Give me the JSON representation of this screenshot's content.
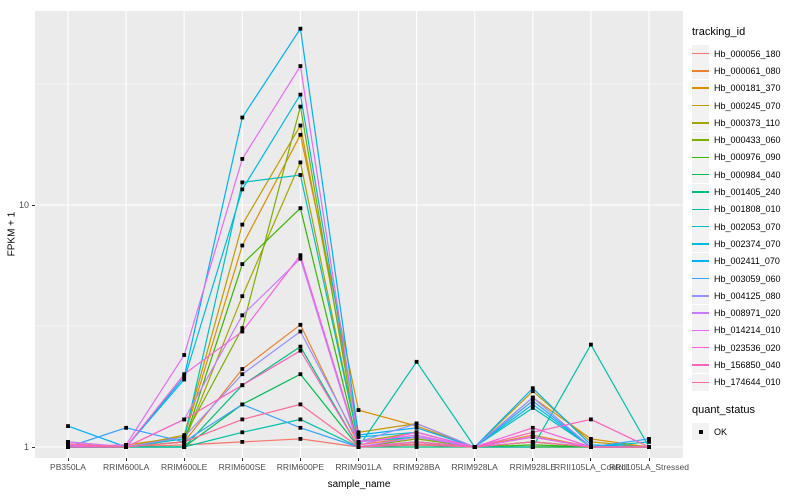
{
  "chart_data": {
    "type": "line",
    "title": "",
    "xlabel": "sample_name",
    "ylabel": "FPKM + 1",
    "y_scale": "log10",
    "ylim": [
      0.9,
      62
    ],
    "grid": true,
    "panel_bg": "#EBEBEB",
    "grid_color": "#FFFFFF",
    "point_shape": "filled-square",
    "point_color": "#000000",
    "y_ticks": [
      {
        "value": 1,
        "label": "1"
      },
      {
        "value": 10,
        "label": "10"
      }
    ],
    "y_minor_ticks": [
      3.162,
      31.62
    ],
    "categories": [
      "PB350LA",
      "RRIM600LA",
      "RRIM600LE",
      "RRIM600SE",
      "RRIM600PE",
      "RRIM901LA",
      "RRIM928BA",
      "RRIM928LA",
      "RRIM928LE",
      "RRII105LA_Control",
      "RRII105LA_Stressed"
    ],
    "series": [
      {
        "name": "Hb_000056_180",
        "color": "#F8766D",
        "values": [
          1.05,
          1.0,
          1.02,
          1.05,
          1.08,
          1.0,
          1.03,
          1.0,
          1.0,
          1.0,
          1.0
        ]
      },
      {
        "name": "Hb_000061_080",
        "color": "#EA8331",
        "values": [
          1.0,
          1.0,
          1.05,
          2.1,
          3.2,
          1.02,
          1.1,
          1.0,
          1.12,
          1.0,
          1.0
        ]
      },
      {
        "name": "Hb_000181_370",
        "color": "#D89000",
        "values": [
          1.0,
          1.02,
          1.1,
          6.8,
          19.5,
          1.42,
          1.22,
          1.0,
          1.6,
          1.08,
          1.0
        ]
      },
      {
        "name": "Hb_000245_070",
        "color": "#C09B00",
        "values": [
          1.0,
          1.0,
          1.12,
          8.3,
          21.3,
          1.15,
          1.25,
          1.0,
          1.7,
          1.05,
          1.0
        ]
      },
      {
        "name": "Hb_000373_110",
        "color": "#A3A500",
        "values": [
          1.0,
          1.0,
          1.05,
          4.2,
          15.0,
          1.05,
          1.15,
          1.0,
          1.1,
          1.0,
          1.0
        ]
      },
      {
        "name": "Hb_000433_060",
        "color": "#7CAE00",
        "values": [
          1.0,
          1.0,
          1.1,
          3.1,
          25.5,
          1.0,
          1.08,
          1.0,
          1.05,
          1.0,
          1.0
        ]
      },
      {
        "name": "Hb_000976_090",
        "color": "#39B600",
        "values": [
          1.0,
          1.0,
          1.05,
          5.7,
          9.7,
          1.0,
          1.05,
          1.0,
          1.02,
          1.0,
          1.0
        ]
      },
      {
        "name": "Hb_000984_040",
        "color": "#00BB4E",
        "values": [
          1.0,
          1.0,
          1.0,
          1.5,
          2.0,
          1.0,
          1.02,
          1.0,
          1.0,
          1.0,
          1.0
        ]
      },
      {
        "name": "Hb_001405_240",
        "color": "#00BF7D",
        "values": [
          1.0,
          1.0,
          1.0,
          1.8,
          2.6,
          1.0,
          1.0,
          1.0,
          1.05,
          1.0,
          1.0
        ]
      },
      {
        "name": "Hb_001808_010",
        "color": "#00C1A7",
        "values": [
          1.0,
          1.0,
          1.0,
          1.15,
          1.3,
          1.0,
          2.25,
          1.0,
          1.0,
          2.65,
          1.0
        ]
      },
      {
        "name": "Hb_002053_070",
        "color": "#00BFC4",
        "values": [
          1.0,
          1.0,
          1.08,
          12.4,
          13.3,
          1.05,
          1.1,
          1.0,
          1.45,
          1.0,
          1.05
        ]
      },
      {
        "name": "Hb_002374_070",
        "color": "#00BAE0",
        "values": [
          1.0,
          1.0,
          1.9,
          11.6,
          28.6,
          1.1,
          1.15,
          1.0,
          1.5,
          1.0,
          1.0
        ]
      },
      {
        "name": "Hb_002411_070",
        "color": "#00B0F6",
        "values": [
          1.22,
          1.0,
          1.95,
          23.0,
          53.5,
          1.12,
          1.2,
          1.0,
          1.75,
          1.02,
          1.0
        ]
      },
      {
        "name": "Hb_003059_060",
        "color": "#35A2FF",
        "values": [
          1.0,
          1.2,
          1.05,
          1.5,
          1.2,
          1.0,
          1.05,
          1.0,
          1.55,
          1.0,
          1.08
        ]
      },
      {
        "name": "Hb_004125_080",
        "color": "#9590FF",
        "values": [
          1.02,
          1.0,
          1.1,
          2.0,
          3.0,
          1.05,
          1.25,
          1.0,
          1.6,
          1.0,
          1.0
        ]
      },
      {
        "name": "Hb_008971_020",
        "color": "#C77CFF",
        "values": [
          1.05,
          1.0,
          1.3,
          3.5,
          6.0,
          1.0,
          1.1,
          1.0,
          1.1,
          1.0,
          1.0
        ]
      },
      {
        "name": "Hb_014214_010",
        "color": "#E76BF3",
        "values": [
          1.0,
          1.02,
          2.4,
          15.5,
          37.5,
          1.05,
          1.12,
          1.0,
          1.1,
          1.0,
          1.0
        ]
      },
      {
        "name": "Hb_023536_020",
        "color": "#FA62DB",
        "values": [
          1.02,
          1.0,
          2.0,
          3.0,
          6.2,
          1.02,
          1.15,
          1.0,
          1.2,
          1.0,
          1.0
        ]
      },
      {
        "name": "Hb_156850_040",
        "color": "#FF62BC",
        "values": [
          1.0,
          1.0,
          1.3,
          1.8,
          2.5,
          1.0,
          1.05,
          1.0,
          1.15,
          1.3,
          1.0
        ]
      },
      {
        "name": "Hb_174644_010",
        "color": "#FF6A98",
        "values": [
          1.03,
          1.0,
          1.05,
          1.3,
          1.5,
          1.0,
          1.02,
          1.0,
          1.05,
          1.0,
          1.0
        ]
      }
    ]
  },
  "legend": {
    "title": "tracking_id"
  },
  "legend2": {
    "title": "quant_status",
    "items": [
      {
        "label": "OK"
      }
    ]
  }
}
